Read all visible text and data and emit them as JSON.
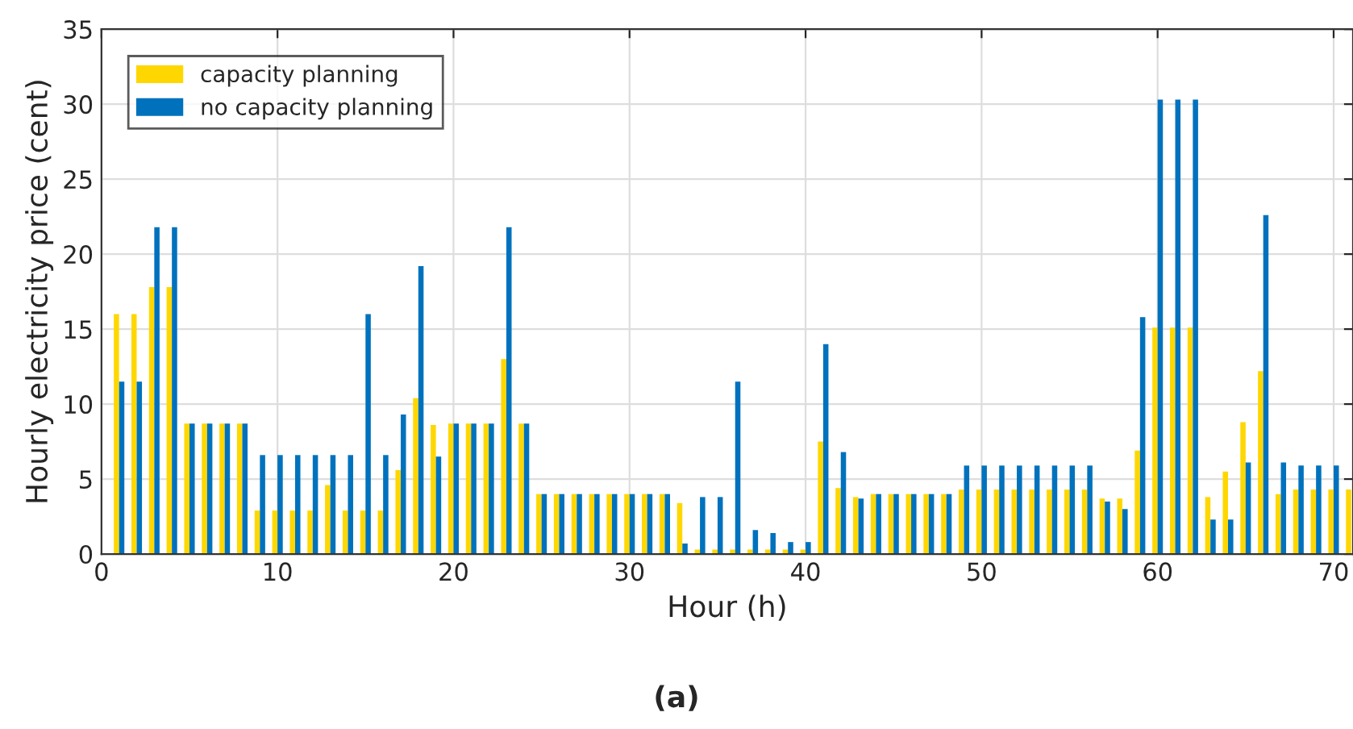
{
  "chart_data": {
    "type": "bar",
    "xlabel": "Hour (h)",
    "ylabel": "Hourly electricity price (cent)",
    "annotations": [
      "(a)"
    ],
    "x": [
      1,
      2,
      3,
      4,
      5,
      6,
      7,
      8,
      9,
      10,
      11,
      12,
      13,
      14,
      15,
      16,
      17,
      18,
      19,
      20,
      21,
      22,
      23,
      24,
      25,
      26,
      27,
      28,
      29,
      30,
      31,
      32,
      33,
      34,
      35,
      36,
      37,
      38,
      39,
      40,
      41,
      42,
      43,
      44,
      45,
      46,
      47,
      48,
      49,
      50,
      51,
      52,
      53,
      54,
      55,
      56,
      57,
      58,
      59,
      60,
      61,
      62,
      63,
      64,
      65,
      66,
      67,
      68,
      69,
      70,
      71
    ],
    "series": [
      {
        "name": "capacity planning",
        "color": "#ffd700",
        "values": [
          16,
          16,
          17.8,
          17.8,
          8.7,
          8.7,
          8.7,
          8.7,
          2.9,
          2.9,
          2.9,
          2.9,
          4.6,
          2.9,
          2.9,
          2.9,
          5.6,
          10.4,
          8.6,
          8.7,
          8.7,
          8.7,
          13,
          8.7,
          4,
          4,
          4,
          4,
          4,
          4,
          4,
          4,
          3.4,
          0.3,
          0.3,
          0.3,
          0.3,
          0.3,
          0.3,
          0.3,
          7.5,
          4.4,
          3.8,
          4,
          4,
          4,
          4,
          4,
          4.3,
          4.3,
          4.3,
          4.3,
          4.3,
          4.3,
          4.3,
          4.3,
          3.7,
          3.7,
          6.9,
          15.1,
          15.1,
          15.1,
          3.8,
          5.5,
          8.8,
          12.2,
          4,
          4.3,
          4.3,
          4.3,
          4.3
        ]
      },
      {
        "name": "no capacity planning",
        "color": "#0072bd",
        "values": [
          11.5,
          11.5,
          21.8,
          21.8,
          8.7,
          8.7,
          8.7,
          8.7,
          6.6,
          6.6,
          6.6,
          6.6,
          6.6,
          6.6,
          16,
          6.6,
          9.3,
          19.2,
          6.5,
          8.7,
          8.7,
          8.7,
          21.8,
          8.7,
          4,
          4,
          4,
          4,
          4,
          4,
          4,
          4,
          0.7,
          3.8,
          3.8,
          11.5,
          1.6,
          1.4,
          0.8,
          0.8,
          14,
          6.8,
          3.7,
          4,
          4,
          4,
          4,
          4,
          5.9,
          5.9,
          5.9,
          5.9,
          5.9,
          5.9,
          5.9,
          5.9,
          3.5,
          3,
          15.8,
          30.3,
          30.3,
          30.3,
          2.3,
          2.3,
          6.1,
          22.6,
          6.1,
          5.9,
          5.9,
          5.9,
          null
        ]
      }
    ],
    "xlim": [
      0,
      71.1
    ],
    "xticks": [
      0,
      10,
      20,
      30,
      40,
      50,
      60,
      70
    ],
    "ylim": [
      0,
      35
    ],
    "yticks": [
      0,
      5,
      10,
      15,
      20,
      25,
      30,
      35
    ],
    "grid": true,
    "legend": "top left"
  }
}
